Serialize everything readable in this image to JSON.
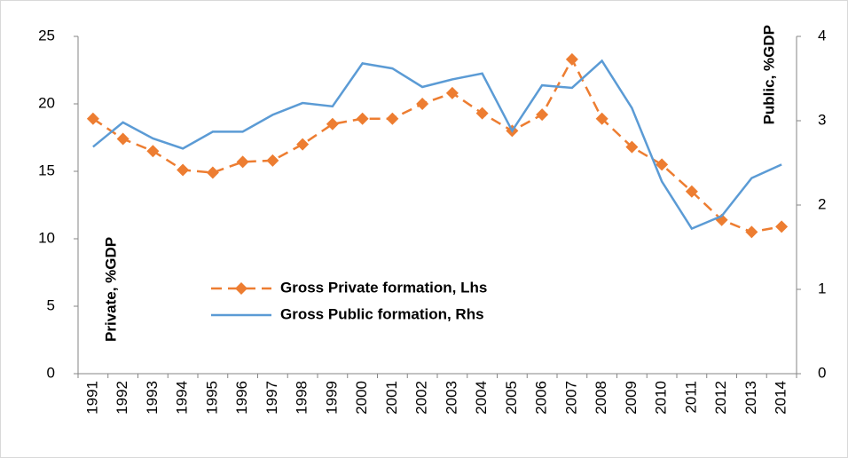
{
  "chart_data": {
    "type": "line",
    "categories": [
      "1991",
      "1992",
      "1993",
      "1994",
      "1995",
      "1996",
      "1997",
      "1998",
      "1999",
      "2000",
      "2001",
      "2002",
      "2003",
      "2004",
      "2005",
      "2006",
      "2007",
      "2008",
      "2009",
      "2010",
      "2011",
      "2012",
      "2013",
      "2014"
    ],
    "series": [
      {
        "name": "Gross Private formation, Lhs",
        "color": "#ed7d31",
        "dashed": true,
        "marker": "diamond",
        "values": [
          18.9,
          17.4,
          16.5,
          15.1,
          14.9,
          15.7,
          15.8,
          17.0,
          18.5,
          18.9,
          18.9,
          20.0,
          20.8,
          19.3,
          18.0,
          19.2,
          23.3,
          18.9,
          16.8,
          15.5,
          13.5,
          11.4,
          10.5,
          10.9
        ]
      },
      {
        "name": "Gross Public formation, Rhs",
        "color": "#5b9bd5",
        "axis": "y2",
        "values": [
          2.69,
          2.98,
          2.79,
          2.67,
          2.87,
          2.87,
          3.07,
          3.21,
          3.17,
          3.68,
          3.62,
          3.4,
          3.49,
          3.56,
          2.88,
          3.42,
          3.39,
          3.71,
          3.15,
          2.28,
          1.72,
          1.87,
          2.32,
          2.48
        ]
      }
    ],
    "ylabel": "Private, %GDP",
    "y2label": "Public, %GDP",
    "ylim": [
      0,
      25
    ],
    "yticks": [
      0,
      5,
      10,
      15,
      20,
      25
    ],
    "y2lim": [
      0,
      4
    ],
    "y2ticks": [
      0,
      1,
      2,
      3,
      4
    ],
    "grid": false
  }
}
